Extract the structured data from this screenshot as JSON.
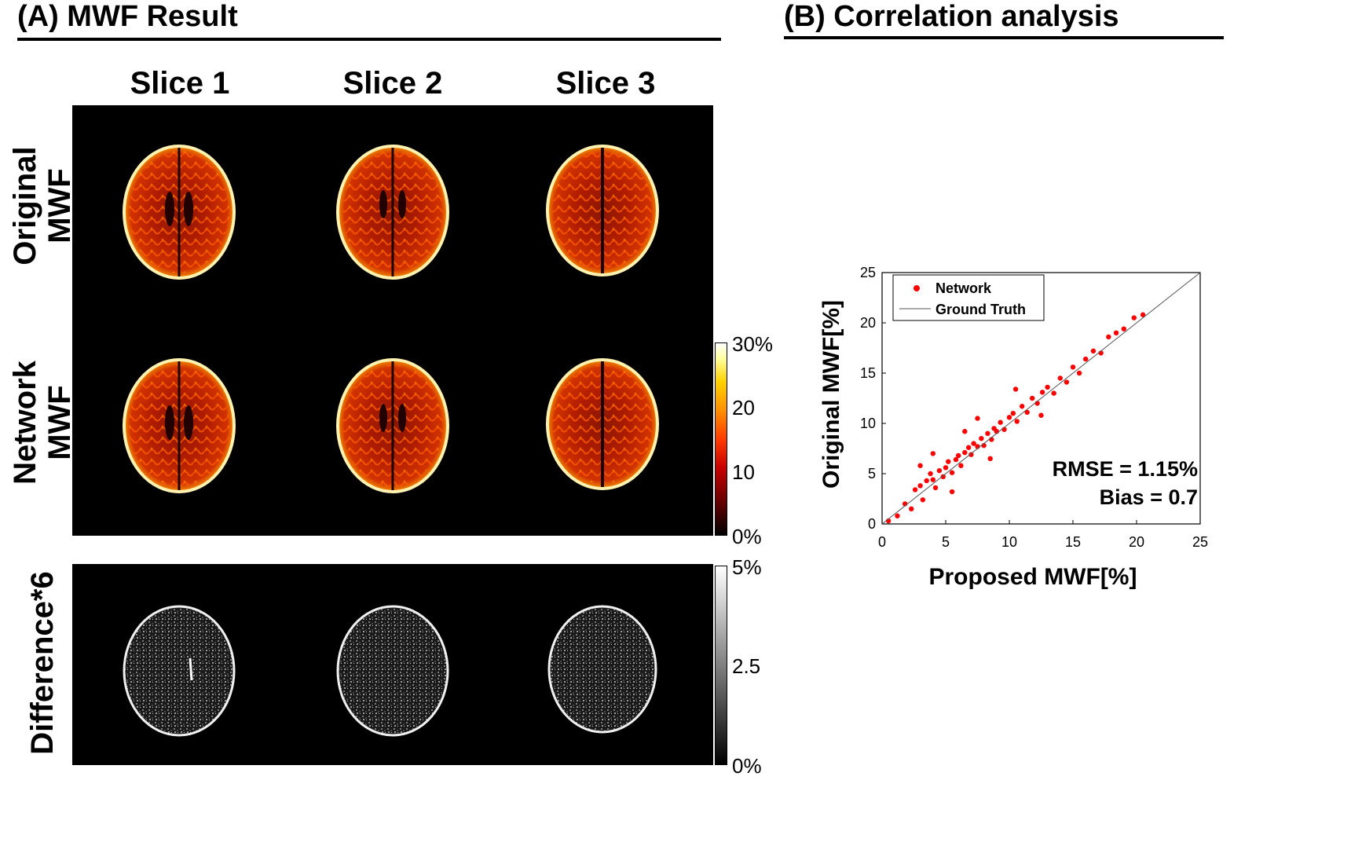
{
  "panel_a": {
    "title": "(A) MWF Result",
    "columns": [
      "Slice 1",
      "Slice 2",
      "Slice 3"
    ],
    "rows": [
      {
        "line1": "Original",
        "line2": "MWF"
      },
      {
        "line1": "Network",
        "line2": "MWF"
      },
      {
        "line1": "Difference*6",
        "line2": ""
      }
    ],
    "colorbar_mwf": {
      "ticks": [
        "30%",
        "20",
        "10",
        "0%"
      ],
      "colormap": "hot"
    },
    "colorbar_diff": {
      "ticks": [
        "5%",
        "2.5",
        "0%"
      ],
      "colormap": "gray"
    }
  },
  "panel_b": {
    "title": "(B) Correlation analysis",
    "annotation_rmse": "RMSE = 1.15%",
    "annotation_bias": "Bias = 0.7"
  },
  "chart_data": {
    "type": "scatter",
    "title": "",
    "xlabel": "Proposed MWF[%]",
    "ylabel": "Original MWF[%]",
    "xlim": [
      0,
      25
    ],
    "ylim": [
      0,
      25
    ],
    "xticks": [
      0,
      5,
      10,
      15,
      20,
      25
    ],
    "yticks": [
      0,
      5,
      10,
      15,
      20,
      25
    ],
    "legend": {
      "position": "top-left",
      "entries": [
        "Network",
        "Ground Truth"
      ]
    },
    "series": [
      {
        "name": "Network",
        "kind": "points",
        "color": "#ff0000",
        "points": [
          [
            0.5,
            0.3
          ],
          [
            1.2,
            0.8
          ],
          [
            1.8,
            2.0
          ],
          [
            2.3,
            1.5
          ],
          [
            2.6,
            3.4
          ],
          [
            3.0,
            3.8
          ],
          [
            3.2,
            2.4
          ],
          [
            3.5,
            4.3
          ],
          [
            3.8,
            5.0
          ],
          [
            4.0,
            4.4
          ],
          [
            4.2,
            3.6
          ],
          [
            4.5,
            5.3
          ],
          [
            4.8,
            4.7
          ],
          [
            5.0,
            5.6
          ],
          [
            5.2,
            6.2
          ],
          [
            5.5,
            5.1
          ],
          [
            5.8,
            6.4
          ],
          [
            6.0,
            6.8
          ],
          [
            6.2,
            5.8
          ],
          [
            6.5,
            7.1
          ],
          [
            6.8,
            7.6
          ],
          [
            7.0,
            6.9
          ],
          [
            7.2,
            8.0
          ],
          [
            7.5,
            7.7
          ],
          [
            7.8,
            8.5
          ],
          [
            8.0,
            7.8
          ],
          [
            8.3,
            9.0
          ],
          [
            8.6,
            8.4
          ],
          [
            8.8,
            9.5
          ],
          [
            9.0,
            9.2
          ],
          [
            9.3,
            10.1
          ],
          [
            9.6,
            9.4
          ],
          [
            10.0,
            10.6
          ],
          [
            10.3,
            11.0
          ],
          [
            10.6,
            10.2
          ],
          [
            11.0,
            11.7
          ],
          [
            11.4,
            11.1
          ],
          [
            11.8,
            12.5
          ],
          [
            12.2,
            12.0
          ],
          [
            12.6,
            13.1
          ],
          [
            13.0,
            13.6
          ],
          [
            13.5,
            13.0
          ],
          [
            14.0,
            14.5
          ],
          [
            14.5,
            14.1
          ],
          [
            15.0,
            15.6
          ],
          [
            15.5,
            15.0
          ],
          [
            16.0,
            16.4
          ],
          [
            16.6,
            17.2
          ],
          [
            17.2,
            17.0
          ],
          [
            17.8,
            18.6
          ],
          [
            18.4,
            19.0
          ],
          [
            19.0,
            19.4
          ],
          [
            19.8,
            20.5
          ],
          [
            20.5,
            20.8
          ],
          [
            5.5,
            3.2
          ],
          [
            8.5,
            6.5
          ],
          [
            12.5,
            10.8
          ],
          [
            6.5,
            9.2
          ],
          [
            4.0,
            7.0
          ],
          [
            10.5,
            13.4
          ],
          [
            3.0,
            5.8
          ],
          [
            7.5,
            10.5
          ]
        ]
      },
      {
        "name": "Ground Truth",
        "kind": "line",
        "color": "#555555",
        "points": [
          [
            0,
            0
          ],
          [
            25,
            25
          ]
        ]
      }
    ]
  }
}
